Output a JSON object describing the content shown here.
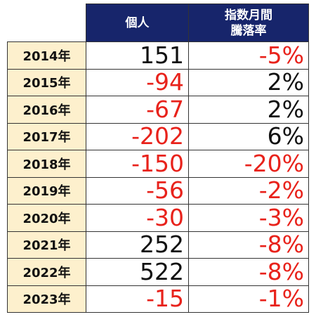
{
  "header": {
    "col_individual": "個人",
    "col_index_line1": "指数月間",
    "col_index_line2": "騰落率"
  },
  "colors": {
    "header_bg": "#17256b",
    "year_bg": "#fdf0cd",
    "negative": "#e8221b",
    "positive": "#111111"
  },
  "rows": [
    {
      "year": "2014年",
      "individual": "151",
      "index_change": "-5%"
    },
    {
      "year": "2015年",
      "individual": "-94",
      "index_change": "2%"
    },
    {
      "year": "2016年",
      "individual": "-67",
      "index_change": "2%"
    },
    {
      "year": "2017年",
      "individual": "-202",
      "index_change": "6%"
    },
    {
      "year": "2018年",
      "individual": "-150",
      "index_change": "-20%"
    },
    {
      "year": "2019年",
      "individual": "-56",
      "index_change": "-2%"
    },
    {
      "year": "2020年",
      "individual": "-30",
      "index_change": "-3%"
    },
    {
      "year": "2021年",
      "individual": "252",
      "index_change": "-8%"
    },
    {
      "year": "2022年",
      "individual": "522",
      "index_change": "-8%"
    },
    {
      "year": "2023年",
      "individual": "-15",
      "index_change": "-1%"
    }
  ]
}
